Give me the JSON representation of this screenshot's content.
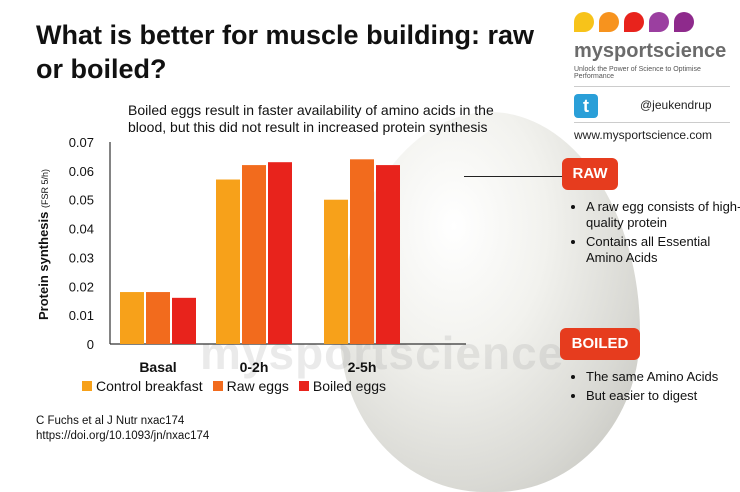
{
  "title": "What is better for muscle building: raw or boiled?",
  "chart_note": "Boiled eggs result in faster availability of amino acids in the blood, but this did not result in increased protein synthesis",
  "watermark": "mysportscience",
  "chart_data": {
    "type": "bar",
    "title": "",
    "ylabel": "Protein synthesis",
    "ylabel_unit": "(FSR 5/h)",
    "xlabel": "",
    "categories": [
      "Basal",
      "0-2h",
      "2-5h"
    ],
    "ylim": [
      0,
      0.07
    ],
    "yticks": [
      0,
      0.01,
      0.02,
      0.03,
      0.04,
      0.05,
      0.06,
      0.07
    ],
    "ytick_labels": [
      "0",
      "0.01",
      "0.02",
      "0.03",
      "0.04",
      "0.05",
      "0.06",
      "0.07"
    ],
    "series": [
      {
        "name": "Control breakfast",
        "color": "#f7a11a",
        "values": [
          0.018,
          0.057,
          0.05
        ]
      },
      {
        "name": "Raw eggs",
        "color": "#f26b1d",
        "values": [
          0.018,
          0.062,
          0.064
        ]
      },
      {
        "name": "Boiled eggs",
        "color": "#e8231c",
        "values": [
          0.016,
          0.063,
          0.062
        ]
      }
    ],
    "legend_position": "bottom",
    "grid": false
  },
  "reference": {
    "line1": "C Fuchs et al J Nutr nxac174",
    "line2": "https://doi.org/10.1093/jn/nxac174"
  },
  "brand": {
    "name": "mysportscience",
    "tagline": "Unlock the Power of Science to Optimise Performance",
    "twitter_icon": "t",
    "handle": "@jeukendrup",
    "website": "www.mysportscience.com",
    "dot_colors": [
      "#f7c31a",
      "#f7931e",
      "#e8231c",
      "#9b3fa0",
      "#8e2a8c"
    ]
  },
  "raw": {
    "label": "RAW",
    "bullets": [
      "A raw egg consists of high-quality protein",
      "Contains all Essential Amino Acids"
    ]
  },
  "boiled": {
    "label": "BOILED",
    "bullets": [
      "The same Amino Acids",
      "But easier to digest"
    ]
  }
}
